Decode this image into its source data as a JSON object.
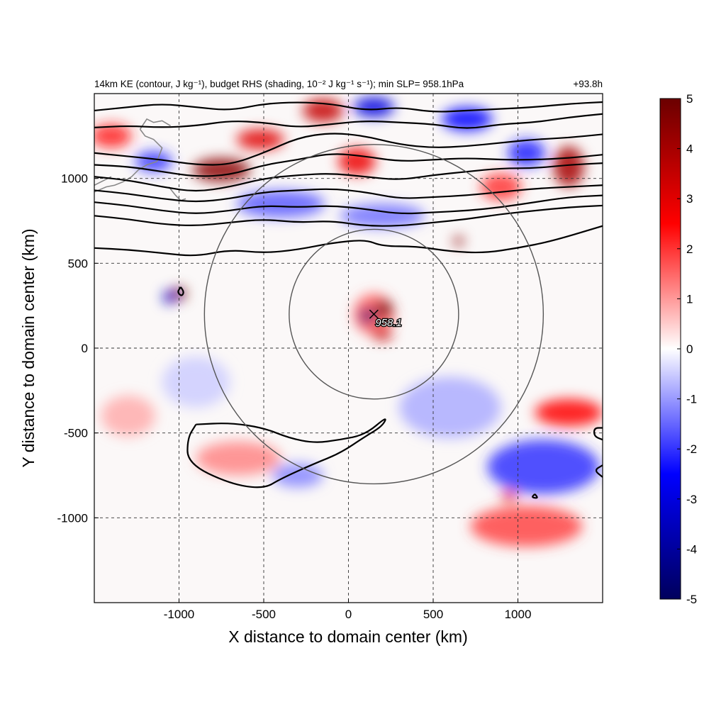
{
  "chart_data": {
    "type": "heatmap",
    "title": "14km KE (contour, J kg⁻¹), budget RHS (shading, 10⁻² J kg⁻¹ s⁻¹); min SLP= 958.1hPa",
    "time_label": "+93.8h",
    "xlabel": "X distance to domain center (km)",
    "ylabel": "Y distance to domain center (km)",
    "xlim": [
      -1500,
      1500
    ],
    "ylim": [
      -1500,
      1500
    ],
    "x_ticks": [
      -1000,
      -500,
      0,
      500,
      1000
    ],
    "y_ticks": [
      -1000,
      -500,
      0,
      500,
      1000
    ],
    "x_tick_labels": [
      "-1000",
      "-500",
      "0",
      "500",
      "1000"
    ],
    "y_tick_labels": [
      "-1000",
      "-500",
      "0",
      "500",
      "1000"
    ],
    "grid": true,
    "colorbar": {
      "placement": "right",
      "range": [
        -5,
        5
      ],
      "ticks": [
        5,
        4,
        3,
        2,
        1,
        0,
        -1,
        -2,
        -3,
        -4,
        -5
      ],
      "tick_labels": [
        "5",
        "4",
        "3",
        "2",
        "1",
        "0",
        "-1",
        "-2",
        "-3",
        "-4",
        "-5"
      ],
      "colors": [
        "#00005c",
        "#0000ff",
        "#ffffff",
        "#ff0000",
        "#6b0000"
      ]
    },
    "storm_center": {
      "x": 150,
      "y": 200,
      "label": "958.1"
    },
    "range_rings": [
      {
        "center_x": 150,
        "center_y": 200,
        "radius": 500
      },
      {
        "center_x": 150,
        "center_y": 200,
        "radius": 1000
      }
    ],
    "ke_contours": [
      {
        "points": [
          [
            -1500,
            1400
          ],
          [
            -1300,
            1420
          ],
          [
            -1100,
            1440
          ],
          [
            -900,
            1420
          ],
          [
            -700,
            1400
          ],
          [
            -500,
            1440
          ],
          [
            -300,
            1450
          ],
          [
            -100,
            1440
          ],
          [
            100,
            1400
          ],
          [
            300,
            1420
          ],
          [
            500,
            1390
          ],
          [
            700,
            1400
          ],
          [
            900,
            1410
          ],
          [
            1100,
            1420
          ],
          [
            1300,
            1440
          ],
          [
            1500,
            1450
          ]
        ]
      },
      {
        "points": [
          [
            -1500,
            1300
          ],
          [
            -1300,
            1310
          ],
          [
            -1100,
            1300
          ],
          [
            -900,
            1310
          ],
          [
            -700,
            1340
          ],
          [
            -500,
            1330
          ],
          [
            -300,
            1300
          ],
          [
            -100,
            1320
          ],
          [
            100,
            1340
          ],
          [
            300,
            1330
          ],
          [
            500,
            1320
          ],
          [
            700,
            1290
          ],
          [
            900,
            1320
          ],
          [
            1100,
            1330
          ],
          [
            1300,
            1360
          ],
          [
            1500,
            1380
          ]
        ]
      },
      {
        "points": [
          [
            -1500,
            1150
          ],
          [
            -1300,
            1130
          ],
          [
            -1100,
            1110
          ],
          [
            -900,
            1080
          ],
          [
            -700,
            1080
          ],
          [
            -500,
            1150
          ],
          [
            -300,
            1240
          ],
          [
            -100,
            1270
          ],
          [
            100,
            1250
          ],
          [
            300,
            1200
          ],
          [
            500,
            1180
          ],
          [
            700,
            1190
          ],
          [
            900,
            1210
          ],
          [
            1100,
            1230
          ],
          [
            1300,
            1240
          ],
          [
            1500,
            1260
          ]
        ]
      },
      {
        "points": [
          [
            -1500,
            1080
          ],
          [
            -1300,
            1070
          ],
          [
            -1100,
            1040
          ],
          [
            -900,
            1010
          ],
          [
            -700,
            1020
          ],
          [
            -500,
            1080
          ],
          [
            -300,
            1110
          ],
          [
            -100,
            1150
          ],
          [
            100,
            1130
          ],
          [
            300,
            1100
          ],
          [
            500,
            1110
          ],
          [
            700,
            1120
          ],
          [
            900,
            1110
          ],
          [
            1100,
            1110
          ],
          [
            1300,
            1120
          ],
          [
            1500,
            1140
          ]
        ]
      },
      {
        "points": [
          [
            -1500,
            1010
          ],
          [
            -1300,
            990
          ],
          [
            -1100,
            950
          ],
          [
            -900,
            920
          ],
          [
            -700,
            950
          ],
          [
            -500,
            1000
          ],
          [
            -300,
            1020
          ],
          [
            -100,
            1030
          ],
          [
            100,
            1010
          ],
          [
            300,
            990
          ],
          [
            500,
            1020
          ],
          [
            700,
            1040
          ],
          [
            900,
            1060
          ],
          [
            1100,
            1060
          ],
          [
            1300,
            1080
          ],
          [
            1500,
            1090
          ]
        ]
      },
      {
        "points": [
          [
            -1500,
            930
          ],
          [
            -1300,
            910
          ],
          [
            -1100,
            880
          ],
          [
            -900,
            860
          ],
          [
            -700,
            880
          ],
          [
            -500,
            920
          ],
          [
            -300,
            930
          ],
          [
            -100,
            940
          ],
          [
            100,
            920
          ],
          [
            300,
            880
          ],
          [
            500,
            890
          ],
          [
            700,
            900
          ],
          [
            900,
            920
          ],
          [
            1100,
            940
          ],
          [
            1300,
            950
          ],
          [
            1500,
            960
          ]
        ]
      },
      {
        "points": [
          [
            -1500,
            860
          ],
          [
            -1300,
            840
          ],
          [
            -1100,
            810
          ],
          [
            -900,
            790
          ],
          [
            -700,
            810
          ],
          [
            -500,
            840
          ],
          [
            -300,
            830
          ],
          [
            -100,
            840
          ],
          [
            100,
            820
          ],
          [
            300,
            790
          ],
          [
            500,
            800
          ],
          [
            700,
            810
          ],
          [
            900,
            830
          ],
          [
            1100,
            860
          ],
          [
            1300,
            890
          ],
          [
            1500,
            900
          ]
        ]
      },
      {
        "points": [
          [
            -1500,
            780
          ],
          [
            -1300,
            760
          ],
          [
            -1100,
            730
          ],
          [
            -900,
            720
          ],
          [
            -700,
            740
          ],
          [
            -500,
            760
          ],
          [
            -300,
            740
          ],
          [
            -100,
            750
          ],
          [
            100,
            720
          ],
          [
            300,
            720
          ],
          [
            500,
            740
          ],
          [
            700,
            760
          ],
          [
            900,
            790
          ],
          [
            1100,
            810
          ],
          [
            1300,
            830
          ],
          [
            1500,
            840
          ]
        ]
      },
      {
        "points": [
          [
            -1500,
            590
          ],
          [
            -1300,
            580
          ],
          [
            -1100,
            560
          ],
          [
            -900,
            540
          ],
          [
            -700,
            580
          ],
          [
            -500,
            560
          ],
          [
            -300,
            580
          ],
          [
            -100,
            620
          ],
          [
            100,
            640
          ],
          [
            200,
            600
          ],
          [
            400,
            600
          ],
          [
            600,
            570
          ],
          [
            800,
            560
          ],
          [
            1000,
            590
          ],
          [
            1200,
            630
          ],
          [
            1500,
            720
          ]
        ]
      },
      {
        "points": [
          [
            -990,
            360
          ],
          [
            -970,
            330
          ],
          [
            -985,
            305
          ],
          [
            -1010,
            330
          ],
          [
            -990,
            360
          ]
        ]
      },
      {
        "points": [
          [
            -900,
            -450
          ],
          [
            -700,
            -440
          ],
          [
            -500,
            -470
          ],
          [
            -350,
            -530
          ],
          [
            -200,
            -560
          ],
          [
            -50,
            -540
          ],
          [
            100,
            -510
          ],
          [
            230,
            -400
          ],
          [
            200,
            -460
          ],
          [
            100,
            -520
          ],
          [
            -50,
            -620
          ],
          [
            -200,
            -680
          ],
          [
            -400,
            -770
          ],
          [
            -500,
            -830
          ],
          [
            -700,
            -800
          ],
          [
            -950,
            -680
          ],
          [
            -950,
            -530
          ],
          [
            -900,
            -450
          ]
        ]
      },
      {
        "points": [
          [
            1500,
            -470
          ],
          [
            1450,
            -470
          ],
          [
            1450,
            -520
          ],
          [
            1500,
            -540
          ]
        ]
      },
      {
        "points": [
          [
            1500,
            -690
          ],
          [
            1450,
            -720
          ],
          [
            1500,
            -760
          ]
        ]
      },
      {
        "points": [
          [
            1100,
            -860
          ],
          [
            1080,
            -880
          ],
          [
            1120,
            -885
          ],
          [
            1100,
            -860
          ]
        ]
      }
    ],
    "shading_features": [
      {
        "x": -750,
        "y": 1050,
        "rx": 170,
        "ry": 70,
        "value": 4.5
      },
      {
        "x": -520,
        "y": 1230,
        "rx": 140,
        "ry": 60,
        "value": 3.0
      },
      {
        "x": -150,
        "y": 1400,
        "rx": 120,
        "ry": 70,
        "value": 3.5
      },
      {
        "x": 50,
        "y": 1100,
        "rx": 110,
        "ry": 80,
        "value": 2.8
      },
      {
        "x": 150,
        "y": 1420,
        "rx": 120,
        "ry": 60,
        "value": -3.0
      },
      {
        "x": -1150,
        "y": 1100,
        "rx": 110,
        "ry": 60,
        "value": -2.0
      },
      {
        "x": -1400,
        "y": 1250,
        "rx": 120,
        "ry": 70,
        "value": 2.2
      },
      {
        "x": 1300,
        "y": 1070,
        "rx": 90,
        "ry": 120,
        "value": 4.0
      },
      {
        "x": 1050,
        "y": 1150,
        "rx": 110,
        "ry": 80,
        "value": -2.2
      },
      {
        "x": 900,
        "y": 950,
        "rx": 120,
        "ry": 80,
        "value": 2.0
      },
      {
        "x": 700,
        "y": 1350,
        "rx": 150,
        "ry": 70,
        "value": -2.5
      },
      {
        "x": 650,
        "y": 630,
        "rx": 30,
        "ry": 30,
        "value": 4.5
      },
      {
        "x": -400,
        "y": 850,
        "rx": 260,
        "ry": 80,
        "value": -1.6
      },
      {
        "x": 200,
        "y": 780,
        "rx": 250,
        "ry": 70,
        "value": -1.4
      },
      {
        "x": -1000,
        "y": 320,
        "rx": 40,
        "ry": 40,
        "value": 5.0
      },
      {
        "x": -1060,
        "y": 300,
        "rx": 35,
        "ry": 40,
        "value": -3.5
      },
      {
        "x": 150,
        "y": 200,
        "rx": 120,
        "ry": 120,
        "value": 1.6
      },
      {
        "x": 210,
        "y": 230,
        "rx": 50,
        "ry": 50,
        "value": 5.0
      },
      {
        "x": 110,
        "y": 190,
        "rx": 40,
        "ry": 45,
        "value": -4.5
      },
      {
        "x": 200,
        "y": 80,
        "rx": 60,
        "ry": 35,
        "value": 3.5
      },
      {
        "x": -900,
        "y": -200,
        "rx": 200,
        "ry": 150,
        "value": -0.5
      },
      {
        "x": 600,
        "y": -350,
        "rx": 300,
        "ry": 180,
        "value": -0.8
      },
      {
        "x": 1150,
        "y": -700,
        "rx": 330,
        "ry": 160,
        "value": -2.0
      },
      {
        "x": 1300,
        "y": -380,
        "rx": 200,
        "ry": 80,
        "value": 2.5
      },
      {
        "x": 1050,
        "y": -1050,
        "rx": 330,
        "ry": 120,
        "value": 1.8
      },
      {
        "x": 950,
        "y": -870,
        "rx": 50,
        "ry": 30,
        "value": 3.0
      },
      {
        "x": -650,
        "y": -650,
        "rx": 250,
        "ry": 100,
        "value": 1.2
      },
      {
        "x": -300,
        "y": -750,
        "rx": 150,
        "ry": 70,
        "value": -1.2
      },
      {
        "x": -1300,
        "y": -400,
        "rx": 160,
        "ry": 120,
        "value": 0.8
      }
    ],
    "coastlines": [
      {
        "points": [
          [
            -1500,
            920
          ],
          [
            -1430,
            950
          ],
          [
            -1380,
            960
          ],
          [
            -1330,
            980
          ],
          [
            -1280,
            1010
          ],
          [
            -1240,
            1050
          ],
          [
            -1190,
            1080
          ],
          [
            -1130,
            1100
          ]
        ]
      },
      {
        "points": [
          [
            -1130,
            1100
          ],
          [
            -1100,
            1180
          ],
          [
            -1150,
            1230
          ],
          [
            -1200,
            1250
          ],
          [
            -1230,
            1290
          ]
        ]
      },
      {
        "points": [
          [
            -1230,
            1290
          ],
          [
            -1190,
            1350
          ],
          [
            -1150,
            1330
          ],
          [
            -1100,
            1340
          ],
          [
            -1050,
            1310
          ]
        ]
      },
      {
        "points": [
          [
            -1500,
            960
          ],
          [
            -1440,
            990
          ],
          [
            -1400,
            1010
          ]
        ]
      },
      {
        "points": [
          [
            -1060,
            950
          ],
          [
            -1020,
            900
          ],
          [
            -990,
            870
          ],
          [
            -960,
            880
          ]
        ]
      }
    ]
  }
}
